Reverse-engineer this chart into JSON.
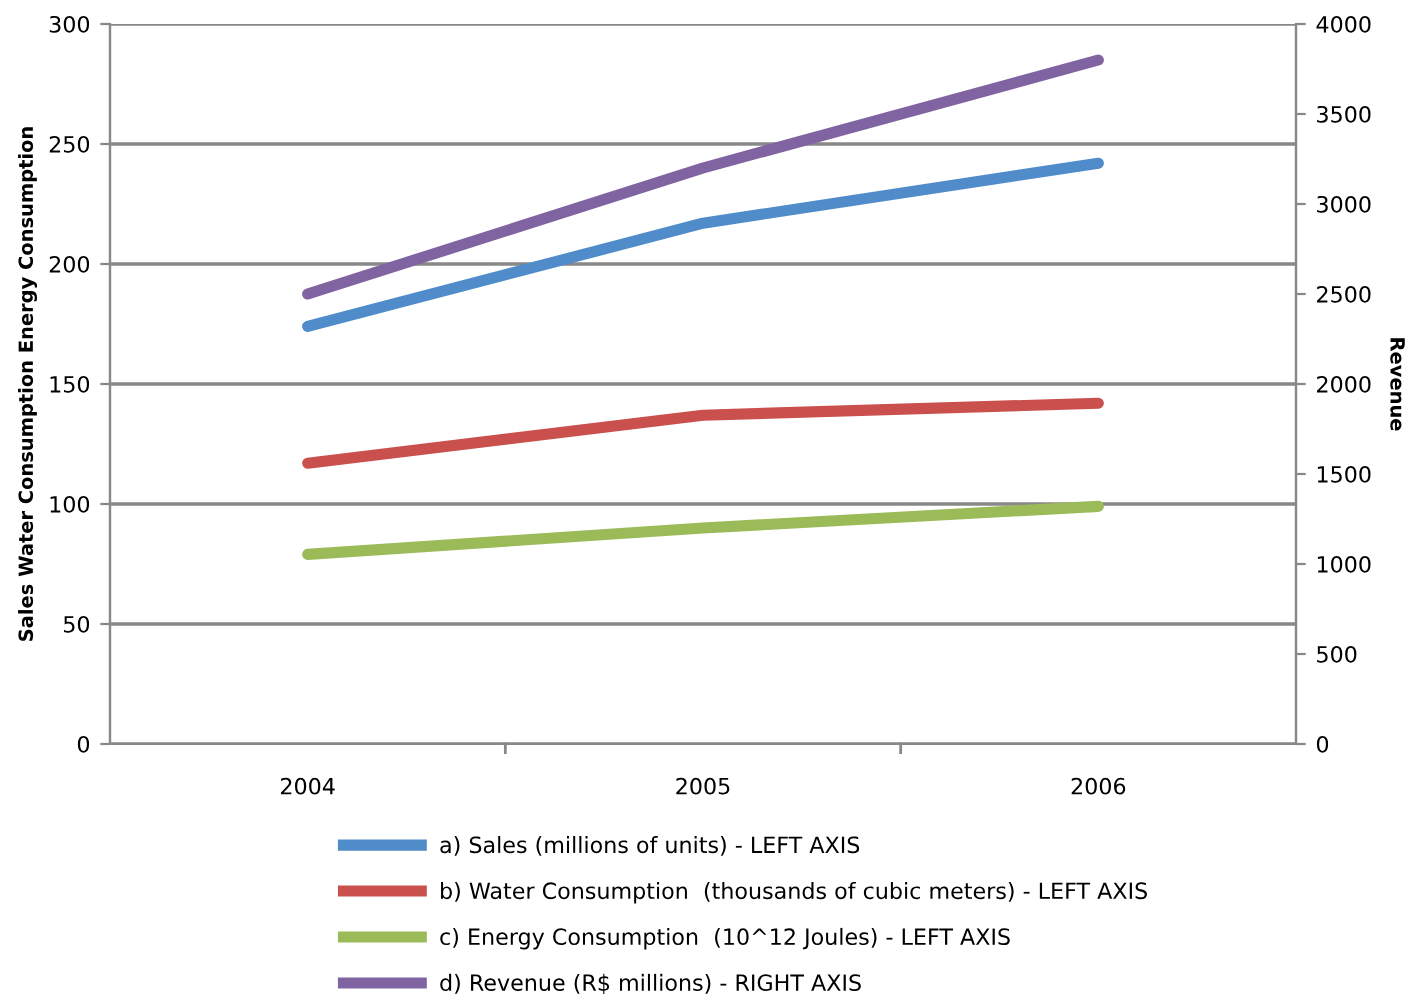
{
  "chart_data": {
    "type": "line",
    "categories": [
      "2004",
      "2005",
      "2006"
    ],
    "ylabel": "Sales Water Consumption Energy Consumption",
    "y2label": "Revenue",
    "ylim": [
      0,
      300
    ],
    "yticks": [
      0,
      50,
      100,
      150,
      200,
      250,
      300
    ],
    "y2lim": [
      0,
      4000
    ],
    "y2ticks": [
      0,
      500,
      1000,
      1500,
      2000,
      2500,
      3000,
      3500,
      4000
    ],
    "grid": "y",
    "legend": "bottom",
    "marker": "none",
    "line_style": "solid",
    "series": [
      {
        "name": "a) Sales (millions of units) - LEFT AXIS",
        "color": "#4f8cc9",
        "values": [
          174,
          217,
          242
        ]
      },
      {
        "name": "b) Water Consumption  (thousands of cubic meters) - LEFT AXIS",
        "color": "#c9504d",
        "values": [
          117,
          137,
          142
        ]
      },
      {
        "name": "c) Energy Consumption  (10^12 Joules) - LEFT AXIS",
        "color": "#9bbb59",
        "values": [
          79,
          90,
          99
        ]
      },
      {
        "name": "d) Revenue (R$ millions) - RIGHT AXIS",
        "color": "#8064a2",
        "values": [
          2500,
          3200,
          3800
        ],
        "axis": "y2"
      }
    ]
  }
}
